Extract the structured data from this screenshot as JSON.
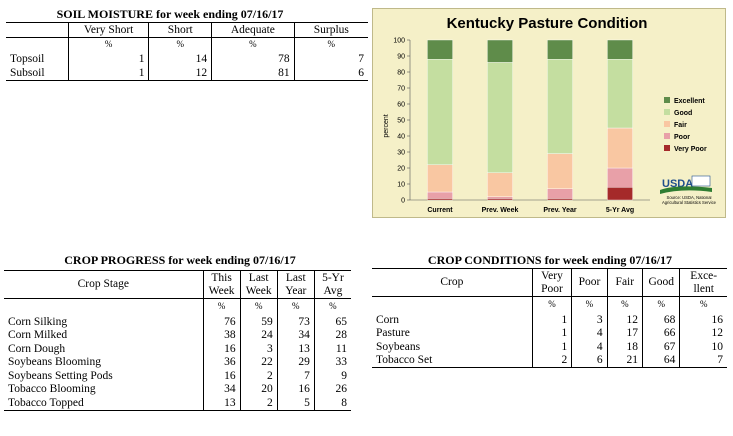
{
  "soil": {
    "title": "SOIL MOISTURE for week ending 07/16/17",
    "headers": [
      "",
      "Very Short",
      "Short",
      "Adequate",
      "Surplus"
    ],
    "units": [
      "",
      "%",
      "%",
      "%",
      "%"
    ],
    "rows": [
      [
        "Topsoil",
        "1",
        "14",
        "78",
        "7"
      ],
      [
        "Subsoil",
        "1",
        "12",
        "81",
        "6"
      ]
    ]
  },
  "chart_data": {
    "type": "bar",
    "stacked": true,
    "title": "Kentucky Pasture Condition",
    "ylabel": "percent",
    "xlabel": "",
    "ylim": [
      0,
      100
    ],
    "yticks": [
      "0",
      "10",
      "20",
      "30",
      "40",
      "50",
      "60",
      "70",
      "80",
      "90",
      "100"
    ],
    "categories": [
      "Current",
      "Prev. Week",
      "Prev. Year",
      "5-Yr Avg"
    ],
    "series": [
      {
        "name": "Very Poor",
        "color": "#a52a2a",
        "values": [
          1,
          1,
          1,
          8
        ]
      },
      {
        "name": "Poor",
        "color": "#e8a0a8",
        "values": [
          4,
          1,
          6,
          12
        ]
      },
      {
        "name": "Fair",
        "color": "#f9c7a2",
        "values": [
          17,
          15,
          22,
          25
        ]
      },
      {
        "name": "Good",
        "color": "#c4dea0",
        "values": [
          66,
          69,
          59,
          43
        ]
      },
      {
        "name": "Excellent",
        "color": "#5f8c4a",
        "values": [
          12,
          14,
          12,
          12
        ]
      }
    ],
    "legend_position": "right",
    "legend_order": [
      "Excellent",
      "Good",
      "Fair",
      "Poor",
      "Very Poor"
    ],
    "background": "#f5f0c8",
    "logo_text": "USDA",
    "source_text": "Source: USDA, National Agricultural Statistics Service"
  },
  "progress": {
    "title": "CROP PROGRESS for week ending 07/16/17",
    "header_stage": "Crop Stage",
    "header_cols": [
      [
        "This",
        "Week"
      ],
      [
        "Last",
        "Week"
      ],
      [
        "Last",
        "Year"
      ],
      [
        "5-Yr",
        "Avg"
      ]
    ],
    "units": [
      "%",
      "%",
      "%",
      "%"
    ],
    "rows": [
      [
        "Corn Silking",
        "76",
        "59",
        "73",
        "65"
      ],
      [
        "Corn Milked",
        "38",
        "24",
        "34",
        "28"
      ],
      [
        "Corn Dough",
        "16",
        "3",
        "13",
        "11"
      ],
      [
        "Soybeans Blooming",
        "36",
        "22",
        "29",
        "33"
      ],
      [
        "Soybeans Setting Pods",
        "16",
        "2",
        "7",
        "9"
      ],
      [
        "Tobacco Blooming",
        "34",
        "20",
        "16",
        "26"
      ],
      [
        "Tobacco Topped",
        "13",
        "2",
        "5",
        "8"
      ]
    ]
  },
  "conditions": {
    "title": "CROP CONDITIONS for week ending 07/16/17",
    "header_crop": "Crop",
    "header_cols": [
      [
        "Very",
        "Poor"
      ],
      [
        "Poor"
      ],
      [
        "Fair"
      ],
      [
        "Good"
      ],
      [
        "Exce-",
        "llent"
      ]
    ],
    "units": [
      "%",
      "%",
      "%",
      "%",
      "%"
    ],
    "rows": [
      [
        "Corn",
        "1",
        "3",
        "12",
        "68",
        "16"
      ],
      [
        "Pasture",
        "1",
        "4",
        "17",
        "66",
        "12"
      ],
      [
        "Soybeans",
        "1",
        "4",
        "18",
        "67",
        "10"
      ],
      [
        "Tobacco Set",
        "2",
        "6",
        "21",
        "64",
        "7"
      ]
    ]
  }
}
